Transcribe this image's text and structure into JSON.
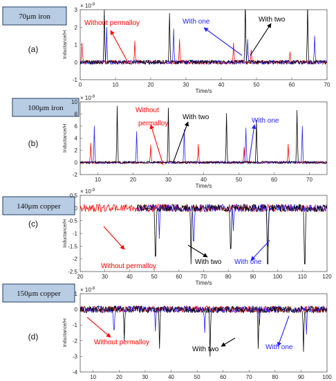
{
  "colors": {
    "red": "#ff0000",
    "blue": "#2222ff",
    "black": "#000000",
    "badge_fill": "#b8cce4",
    "badge_stroke": "#1f3b63",
    "axis": "#555555",
    "text": "#222222"
  },
  "series_names": {
    "without": "Without permalloy",
    "one": "With one",
    "two": "With two"
  },
  "chart_data": [
    {
      "type": "line",
      "panel_label": "(a)",
      "badge": "70μm iron",
      "ylabel": "Inductance/H",
      "xlabel": "Time/s",
      "exponent": "× 10",
      "exponent_power": "-9",
      "xlim": [
        0,
        70
      ],
      "ylim": [
        -1,
        3
      ],
      "xticks": [
        0,
        10,
        20,
        30,
        40,
        50,
        60,
        70
      ],
      "yticks": [
        -1,
        0,
        1,
        2,
        3
      ],
      "noise_amp": 0.12,
      "series": [
        {
          "name": "Without permalloy",
          "color": "red",
          "start": 0,
          "peaks": [
            [
              0.5,
              1.1
            ],
            [
              15.5,
              1.2
            ],
            [
              28.2,
              1.3
            ],
            [
              43.5,
              1.1
            ],
            [
              48.5,
              0.7
            ],
            [
              59.5,
              0.6
            ]
          ]
        },
        {
          "name": "With one",
          "color": "blue",
          "start": 0,
          "peaks": [
            [
              7.5,
              2.0
            ],
            [
              26.5,
              1.9
            ],
            [
              47.5,
              1.3
            ],
            [
              66.5,
              1.5
            ]
          ]
        },
        {
          "name": "With two",
          "color": "black",
          "start": 0,
          "peaks": [
            [
              6.8,
              3.0
            ],
            [
              25.3,
              2.8
            ],
            [
              46.8,
              3.5
            ],
            [
              64.5,
              3.3
            ]
          ]
        }
      ],
      "annotations": [
        {
          "text": "Without permalloy",
          "color": "red"
        },
        {
          "text": "With one",
          "color": "blue"
        },
        {
          "text": "With two",
          "color": "black"
        }
      ]
    },
    {
      "type": "line",
      "panel_label": "(b)",
      "badge": "100μm iron",
      "ylabel": "Inductance/H",
      "xlabel": "Time/s",
      "exponent": "× 10",
      "exponent_power": "-9",
      "xlim": [
        5,
        75
      ],
      "ylim": [
        -2,
        10
      ],
      "xticks": [
        10,
        20,
        30,
        40,
        50,
        60,
        70
      ],
      "yticks": [
        -2,
        0,
        2,
        4,
        6,
        8,
        10
      ],
      "noise_amp": 0.2,
      "series": [
        {
          "name": "Without permalloy",
          "color": "red",
          "start": 5,
          "peaks": [
            [
              8,
              3.2
            ],
            [
              25,
              2.9
            ],
            [
              38.5,
              3.0
            ],
            [
              51.5,
              2.5
            ],
            [
              64,
              3.0
            ]
          ]
        },
        {
          "name": "With one",
          "color": "blue",
          "start": 5,
          "peaks": [
            [
              9,
              6.0
            ],
            [
              21,
              5.1
            ],
            [
              34.5,
              5.4
            ],
            [
              52,
              5.7
            ],
            [
              68,
              6.0
            ]
          ]
        },
        {
          "name": "With two",
          "color": "black",
          "start": 5,
          "peaks": [
            [
              15.5,
              9.3
            ],
            [
              30,
              9.0
            ],
            [
              46.5,
              8.1
            ],
            [
              55,
              7.0
            ],
            [
              66.5,
              8.6
            ]
          ]
        }
      ],
      "annotations": [
        {
          "text": "Without",
          "color": "red"
        },
        {
          "text": "permalloy",
          "color": "red"
        },
        {
          "text": "With two",
          "color": "black"
        },
        {
          "text": "With one",
          "color": "blue"
        }
      ]
    },
    {
      "type": "line",
      "panel_label": "(c)",
      "badge": "140μm copper",
      "ylabel": "Inductance/H",
      "xlabel": "Time/s",
      "exponent": "× 10",
      "exponent_power": "-9",
      "xlim": [
        20,
        120
      ],
      "ylim": [
        -2.5,
        0.5
      ],
      "xticks": [
        20,
        30,
        40,
        50,
        60,
        70,
        80,
        90,
        100,
        110,
        120
      ],
      "yticks": [
        -2.5,
        -2,
        -1.5,
        -1,
        -0.5,
        0,
        0.5
      ],
      "noise_amp": 0.15,
      "series": [
        {
          "name": "Without permalloy",
          "color": "red",
          "start": 20,
          "peaks": []
        },
        {
          "name": "With one",
          "color": "blue",
          "start": 43,
          "peaks": [
            [
              52,
              -1.2
            ],
            [
              66,
              -1.3
            ],
            [
              82,
              -0.9
            ],
            [
              96,
              -1.5
            ]
          ]
        },
        {
          "name": "With two",
          "color": "black",
          "start": 43,
          "peaks": [
            [
              50.5,
              -1.9
            ],
            [
              65,
              -2.2
            ],
            [
              81,
              -1.6
            ],
            [
              96,
              -2.2
            ],
            [
              111,
              -2.2
            ]
          ]
        }
      ],
      "annotations": [
        {
          "text": "Without permalloy",
          "color": "red"
        },
        {
          "text": "With two",
          "color": "black"
        },
        {
          "text": "With one",
          "color": "blue"
        }
      ]
    },
    {
      "type": "line",
      "panel_label": "(d)",
      "badge": "150μm copper",
      "ylabel": "Inductance/H",
      "xlabel": "Time/s",
      "exponent": "× 10",
      "exponent_power": "-9",
      "xlim": [
        5,
        100
      ],
      "ylim": [
        -4,
        1
      ],
      "xticks": [
        10,
        20,
        30,
        40,
        50,
        60,
        70,
        80,
        90,
        100
      ],
      "yticks": [
        -4,
        -3,
        -2,
        -1,
        0,
        1
      ],
      "noise_amp": 0.22,
      "series": [
        {
          "name": "Without permalloy",
          "color": "red",
          "start": 5,
          "peaks": []
        },
        {
          "name": "With one",
          "color": "blue",
          "start": 5,
          "peaks": [
            [
              18,
              -1.3
            ],
            [
              34,
              -1.4
            ],
            [
              53,
              -1.5
            ],
            [
              74,
              -1.0
            ],
            [
              92,
              -1.6
            ]
          ]
        },
        {
          "name": "With two",
          "color": "black",
          "start": 5,
          "peaks": [
            [
              22,
              -2.0
            ],
            [
              35.5,
              -2.5
            ],
            [
              55,
              -3.0
            ],
            [
              73.5,
              -2.5
            ],
            [
              91,
              -2.7
            ]
          ]
        }
      ],
      "annotations": [
        {
          "text": "Without permalloy",
          "color": "red"
        },
        {
          "text": "With two",
          "color": "black"
        },
        {
          "text": "With one",
          "color": "blue"
        }
      ]
    }
  ]
}
